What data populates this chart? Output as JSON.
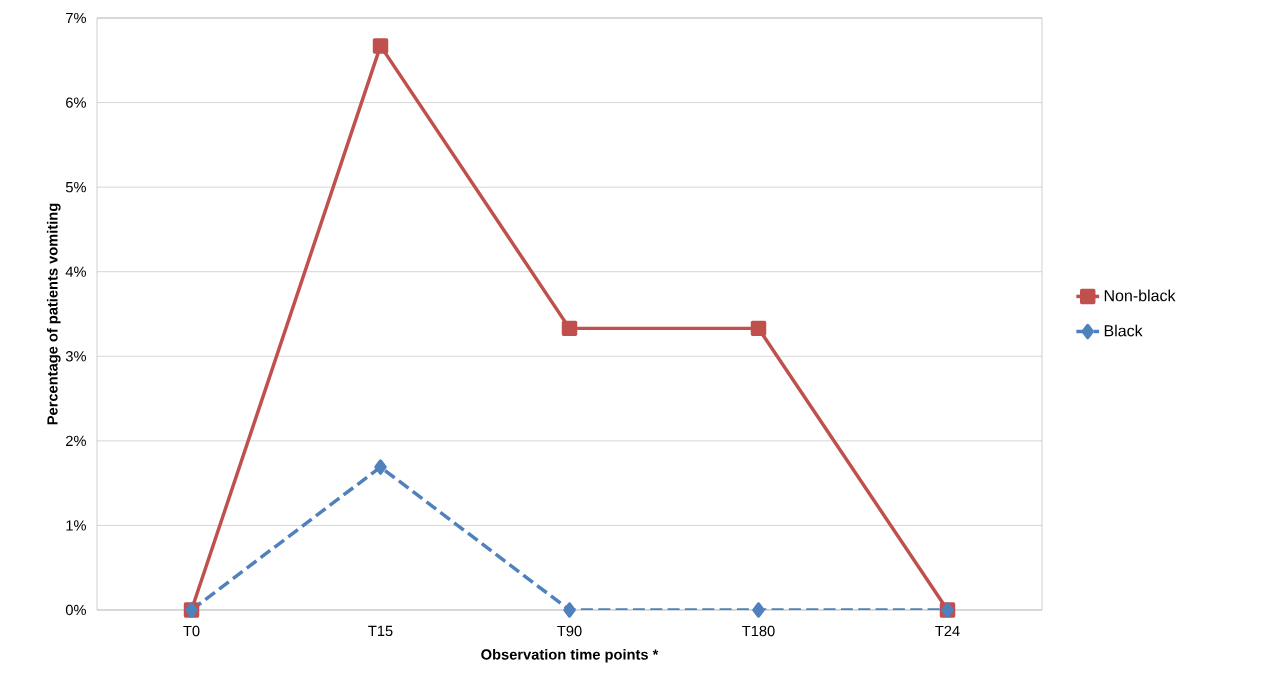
{
  "chart_data": {
    "type": "line",
    "xlabel": "Observation time points *",
    "ylabel": "Percentage of patients vomiting",
    "categories": [
      "T0",
      "T15",
      "T90",
      "T180",
      "T24"
    ],
    "series": [
      {
        "name": "Non-black",
        "color": "#c0504d",
        "values": [
          0,
          6.67,
          3.33,
          3.33,
          0
        ],
        "marker": "square",
        "line_style": "solid"
      },
      {
        "name": "Black",
        "color": "#4f81bd",
        "values": [
          0,
          1.69,
          0,
          0,
          0
        ],
        "marker": "diamond",
        "line_style": "dashed"
      }
    ],
    "ylim": [
      0,
      7
    ],
    "yticks": [
      {
        "value": 0,
        "label": "0%"
      },
      {
        "value": 1,
        "label": "1%"
      },
      {
        "value": 2,
        "label": "2%"
      },
      {
        "value": 3,
        "label": "3%"
      },
      {
        "value": 4,
        "label": "4%"
      },
      {
        "value": 5,
        "label": "5%"
      },
      {
        "value": 6,
        "label": "6%"
      },
      {
        "value": 7,
        "label": "7%"
      }
    ],
    "grid": "y",
    "legend": "right"
  }
}
